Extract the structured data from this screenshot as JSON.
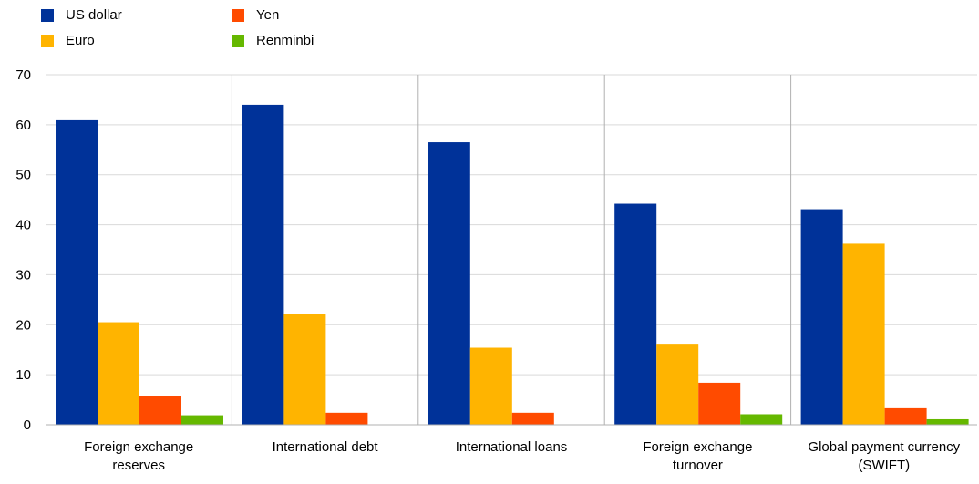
{
  "colors": {
    "us_dollar": "#003299",
    "euro": "#FFB400",
    "yen": "#FF4B00",
    "renminbi": "#65B800",
    "grid": "#d9d9d9",
    "axis": "#b0b0b0"
  },
  "chart_data": {
    "type": "bar",
    "title": "",
    "xlabel": "",
    "ylabel": "",
    "ylim": [
      0,
      70
    ],
    "yticks": [
      0,
      10,
      20,
      30,
      40,
      50,
      60,
      70
    ],
    "grid": true,
    "legend_position": "top-left",
    "categories": [
      [
        "Foreign exchange",
        "reserves"
      ],
      [
        "International debt"
      ],
      [
        "International loans"
      ],
      [
        "Foreign exchange",
        "turnover"
      ],
      [
        "Global payment currency",
        "(SWIFT)"
      ]
    ],
    "series": [
      {
        "name": "US dollar",
        "color_key": "us_dollar",
        "values": [
          60.9,
          64.0,
          56.5,
          44.2,
          43.1
        ]
      },
      {
        "name": "Euro",
        "color_key": "euro",
        "values": [
          20.5,
          22.1,
          15.4,
          16.2,
          36.2
        ]
      },
      {
        "name": "Yen",
        "color_key": "yen",
        "values": [
          5.7,
          2.4,
          2.4,
          8.4,
          3.3
        ]
      },
      {
        "name": "Renminbi",
        "color_key": "renminbi",
        "values": [
          1.9,
          0,
          0,
          2.1,
          1.1
        ]
      }
    ]
  }
}
